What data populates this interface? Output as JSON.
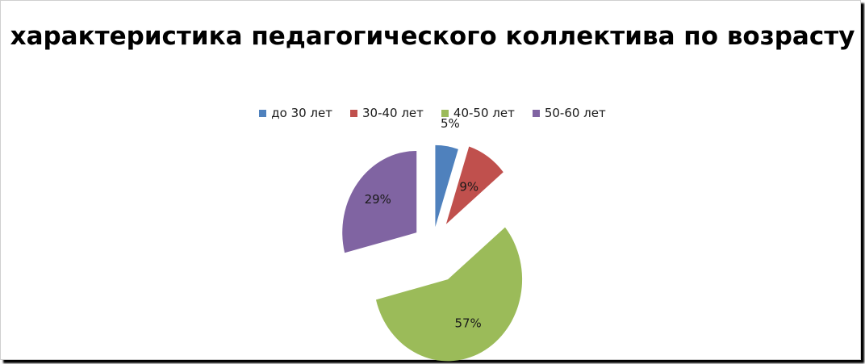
{
  "chart_data": {
    "type": "pie",
    "title": "характеристика педагогического коллектива по возрасту",
    "categories": [
      "до 30 лет",
      "30-40 лет",
      "40-50 лет",
      "50-60 лет"
    ],
    "values": [
      5,
      9,
      57,
      29
    ],
    "labels": [
      "5%",
      "9%",
      "57%",
      "29%"
    ],
    "colors": [
      "#4f81bd",
      "#c0504d",
      "#9bbb59",
      "#8064a2"
    ],
    "legend": "top",
    "exploded": true
  }
}
